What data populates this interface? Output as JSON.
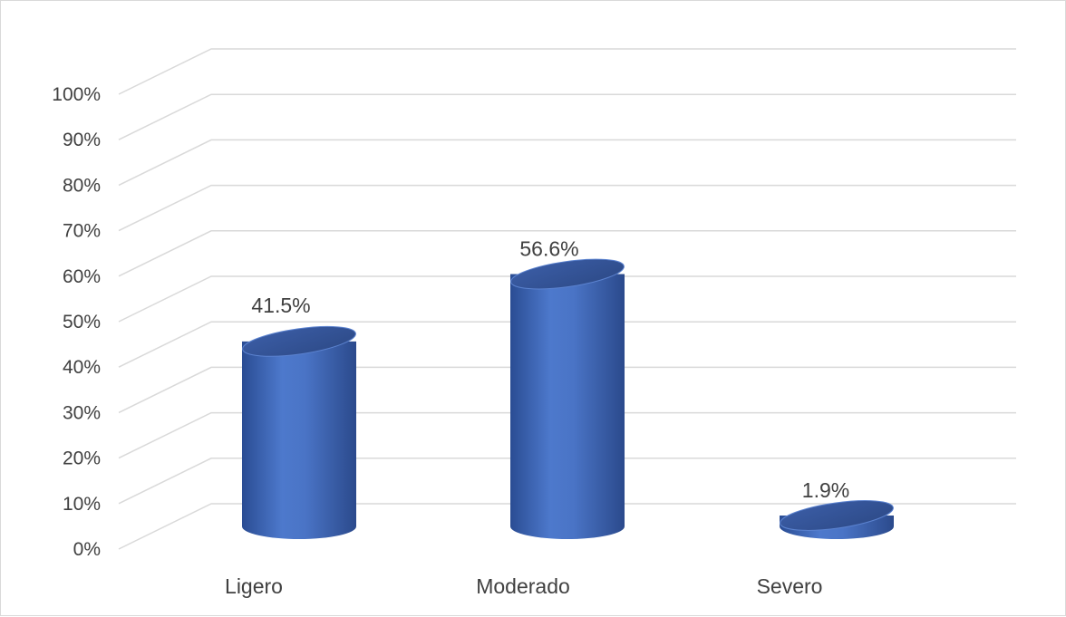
{
  "chart_data": {
    "type": "bar",
    "style": "3d-cylinder",
    "categories": [
      "Ligero",
      "Moderado",
      "Severo"
    ],
    "values": [
      41.5,
      56.6,
      1.9
    ],
    "data_labels": [
      "41.5%",
      "56.6%",
      "1.9%"
    ],
    "y_ticks": [
      "0%",
      "10%",
      "20%",
      "30%",
      "40%",
      "50%",
      "60%",
      "70%",
      "80%",
      "90%",
      "100%"
    ],
    "ylim": [
      0,
      100
    ],
    "grid": true,
    "legend": "none",
    "title": "",
    "xlabel": "",
    "ylabel": "",
    "colors": {
      "bar": "#4472c4",
      "bar_dark": "#2f4f8f",
      "gridline": "#d9d9d9",
      "text": "#404040",
      "border": "#d9d9d9"
    }
  }
}
